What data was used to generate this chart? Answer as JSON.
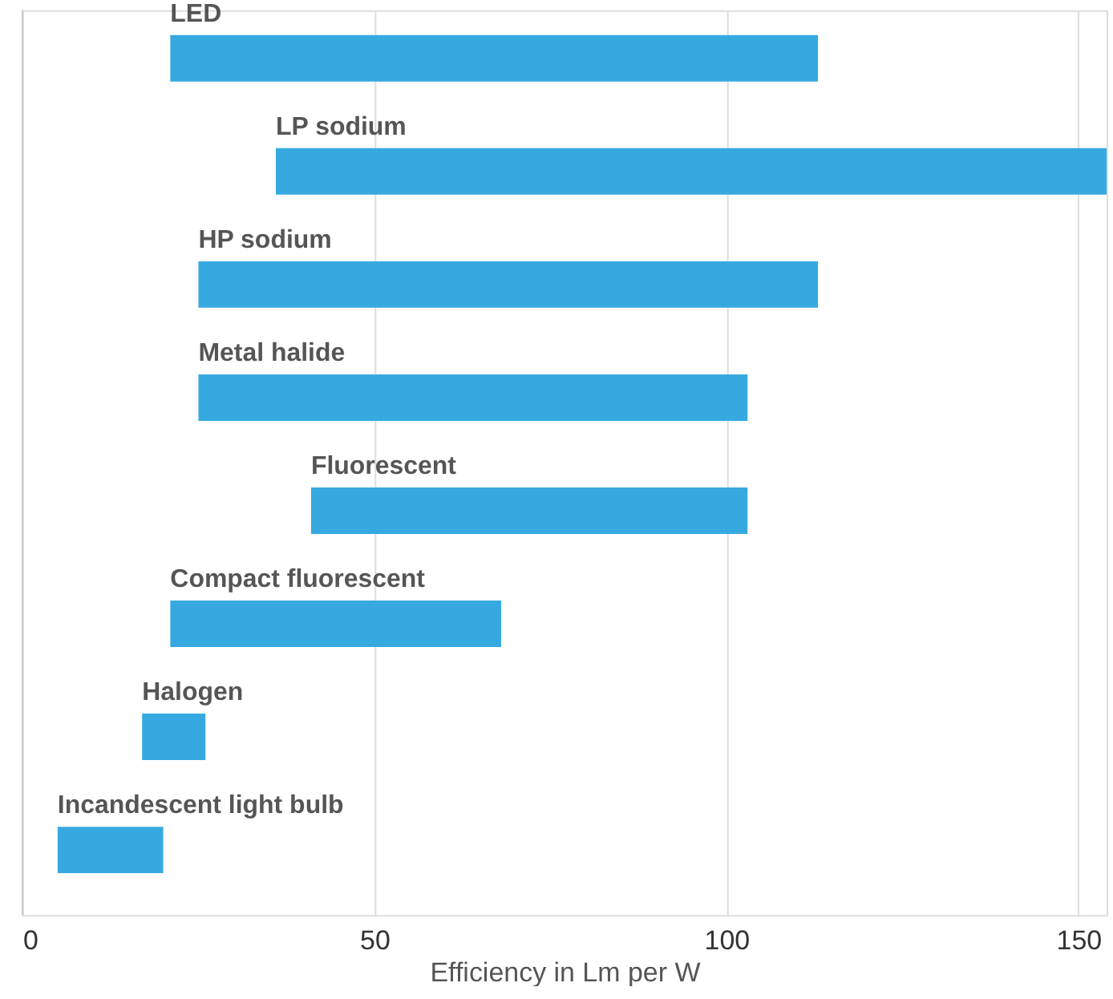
{
  "chart_data": {
    "type": "bar",
    "orientation": "horizontal",
    "xlabel": "Efficiency in Lm per W",
    "categories": [
      "LED",
      "LP sodium",
      "HP sodium",
      "Metal halide",
      "Fluorescent",
      "Compact fluorescent",
      "Halogen",
      "Incandescent light bulb"
    ],
    "base": [
      21,
      36,
      25,
      25,
      41,
      21,
      17,
      5
    ],
    "values": [
      92,
      118,
      88,
      78,
      62,
      47,
      9,
      15
    ],
    "color": "#36a9e1",
    "xlim": [
      0,
      154
    ],
    "xticks": [
      0,
      50,
      100,
      150
    ],
    "grid": "x"
  }
}
